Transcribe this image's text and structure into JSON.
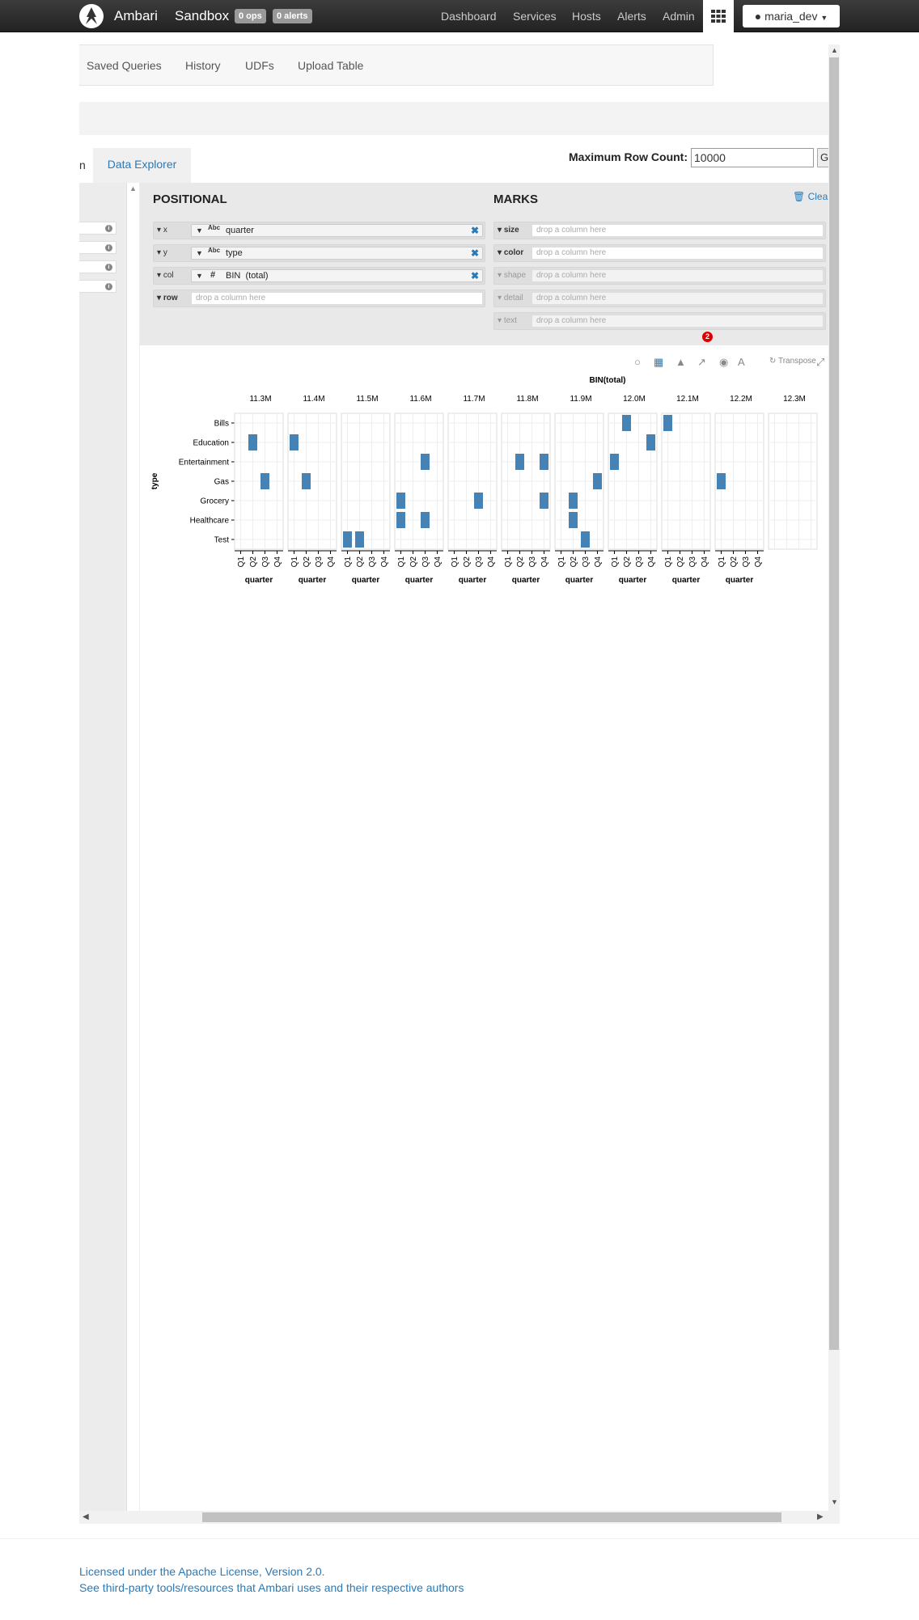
{
  "topbar": {
    "brand": "Ambari",
    "cluster": "Sandbox",
    "ops_badge": "0 ops",
    "alerts_badge": "0 alerts",
    "nav": [
      "Dashboard",
      "Services",
      "Hosts",
      "Alerts",
      "Admin"
    ],
    "user": "maria_dev"
  },
  "view_tabs": [
    "Saved Queries",
    "History",
    "UDFs",
    "Upload Table"
  ],
  "explorer": {
    "partial_tab": "n",
    "tab": "Data Explorer",
    "max_row_label": "Maximum Row Count:",
    "max_row_value": "10000",
    "max_row_btn": "G"
  },
  "shelves": {
    "positional_title": "POSITIONAL",
    "marks_title": "MARKS",
    "clear": "Clear",
    "placeholder": "drop a column here",
    "positional": [
      {
        "channel": "x",
        "type": "Abc",
        "field": "quarter"
      },
      {
        "channel": "y",
        "type": "Abc",
        "field": "type"
      },
      {
        "channel": "col",
        "type": "#",
        "field": "BIN",
        "field_arg": "(total)"
      },
      {
        "channel": "row",
        "field": ""
      }
    ],
    "marks": [
      "size",
      "color",
      "shape",
      "detail",
      "text"
    ],
    "notification_count": "2"
  },
  "chart_toolbar": {
    "transpose": "Transpose"
  },
  "chart_data": {
    "type": "heatmap",
    "title": "BIN(total)",
    "column_labels": [
      "11.3M",
      "11.4M",
      "11.5M",
      "11.6M",
      "11.7M",
      "11.8M",
      "11.9M",
      "12.0M",
      "12.1M",
      "12.2M",
      "12.3M"
    ],
    "x_field": "quarter",
    "x_categories": [
      "Q1",
      "Q2",
      "Q3",
      "Q4"
    ],
    "ylabel": "type",
    "y_categories": [
      "Bills",
      "Education",
      "Entertainment",
      "Gas",
      "Grocery",
      "Healthcare",
      "Test"
    ],
    "mark_color": "#4682b4",
    "points": [
      {
        "col": "11.3M",
        "type": "Education",
        "quarter": "Q2"
      },
      {
        "col": "11.3M",
        "type": "Gas",
        "quarter": "Q3"
      },
      {
        "col": "11.4M",
        "type": "Education",
        "quarter": "Q1"
      },
      {
        "col": "11.4M",
        "type": "Gas",
        "quarter": "Q2"
      },
      {
        "col": "11.5M",
        "type": "Test",
        "quarter": "Q1"
      },
      {
        "col": "11.5M",
        "type": "Test",
        "quarter": "Q2"
      },
      {
        "col": "11.6M",
        "type": "Entertainment",
        "quarter": "Q3"
      },
      {
        "col": "11.6M",
        "type": "Grocery",
        "quarter": "Q1"
      },
      {
        "col": "11.6M",
        "type": "Healthcare",
        "quarter": "Q1"
      },
      {
        "col": "11.6M",
        "type": "Healthcare",
        "quarter": "Q3"
      },
      {
        "col": "11.7M",
        "type": "Grocery",
        "quarter": "Q3"
      },
      {
        "col": "11.8M",
        "type": "Entertainment",
        "quarter": "Q2"
      },
      {
        "col": "11.8M",
        "type": "Entertainment",
        "quarter": "Q4"
      },
      {
        "col": "11.8M",
        "type": "Grocery",
        "quarter": "Q4"
      },
      {
        "col": "11.9M",
        "type": "Gas",
        "quarter": "Q4"
      },
      {
        "col": "11.9M",
        "type": "Grocery",
        "quarter": "Q2"
      },
      {
        "col": "11.9M",
        "type": "Healthcare",
        "quarter": "Q2"
      },
      {
        "col": "11.9M",
        "type": "Test",
        "quarter": "Q3"
      },
      {
        "col": "12.0M",
        "type": "Bills",
        "quarter": "Q2"
      },
      {
        "col": "12.0M",
        "type": "Education",
        "quarter": "Q4"
      },
      {
        "col": "12.0M",
        "type": "Entertainment",
        "quarter": "Q1"
      },
      {
        "col": "12.1M",
        "type": "Bills",
        "quarter": "Q1"
      },
      {
        "col": "12.2M",
        "type": "Gas",
        "quarter": "Q1"
      }
    ]
  },
  "footer": {
    "license": "Licensed under the Apache License, Version 2.0.",
    "third_party": "See third-party tools/resources that Ambari uses and their respective authors"
  }
}
